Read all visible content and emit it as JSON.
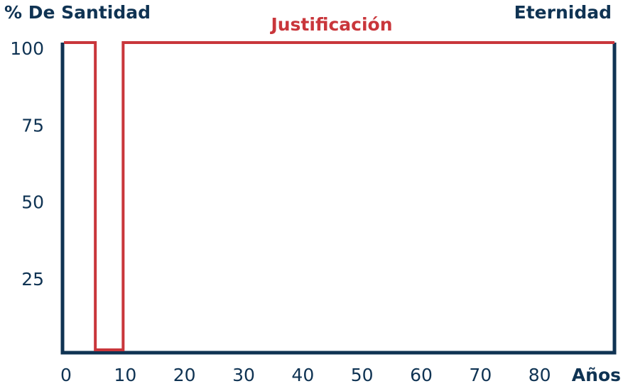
{
  "chart_data": {
    "type": "line",
    "y_label": "% De Santidad",
    "x_label": "Años",
    "annotation": "Eternidad",
    "x": [
      0,
      5.3,
      5.3,
      10,
      10,
      93
    ],
    "series": [
      {
        "name": "Justificación",
        "color": "#c9363b",
        "values": [
          100,
          100,
          0,
          0,
          100,
          100
        ]
      }
    ],
    "xlim": [
      0,
      93
    ],
    "xticks": [
      0,
      10,
      20,
      30,
      40,
      50,
      60,
      70,
      80
    ],
    "ylim": [
      0,
      100
    ],
    "yticks": [
      25,
      50,
      75,
      100
    ],
    "axis_color": "#0f3353"
  }
}
